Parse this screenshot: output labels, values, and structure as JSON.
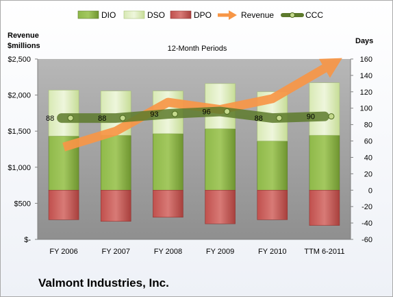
{
  "chart_data": {
    "type": "bar",
    "title": "12-Month Periods",
    "company": "Valmont Industries, Inc.",
    "left_axis_title": [
      "Revenue",
      "$millions"
    ],
    "right_axis_title": "Days",
    "categories": [
      "FY 2006",
      "FY 2007",
      "FY 2008",
      "FY 2009",
      "FY 2010",
      "TTM 6-2011"
    ],
    "left_ticks": [
      "$-",
      "$500",
      "$1,000",
      "$1,500",
      "$2,000",
      "$2,500"
    ],
    "left_ylim": [
      0,
      2500
    ],
    "right_ticks": [
      "-60",
      "-40",
      "-20",
      "0",
      "20",
      "40",
      "60",
      "80",
      "100",
      "120",
      "140",
      "160"
    ],
    "right_ylim": [
      -60,
      160
    ],
    "legend": {
      "dio": "DIO",
      "dso": "DSO",
      "dpo": "DPO",
      "revenue": "Revenue",
      "ccc": "CCC"
    },
    "legend_placement": "top",
    "grid": false,
    "dio": [
      66,
      67,
      69,
      75,
      60,
      67
    ],
    "dso": [
      56,
      54,
      52,
      55,
      60,
      64
    ],
    "dpo": [
      -36,
      -38,
      -33,
      -41,
      -36,
      -43
    ],
    "ccc": [
      88,
      88,
      93,
      96,
      88,
      90
    ],
    "ccc_labels": [
      "88",
      "88",
      "93",
      "96",
      "88",
      "90"
    ],
    "revenue": [
      1280,
      1500,
      1900,
      1800,
      1950,
      2370
    ],
    "colors": {
      "dio": "#7aa33a",
      "dso": "#d3e6a8",
      "dpo": "#c0504d",
      "revenue": "#f79646",
      "ccc": "#5d7a2c",
      "plot_bg": "#a6a6a6"
    }
  }
}
